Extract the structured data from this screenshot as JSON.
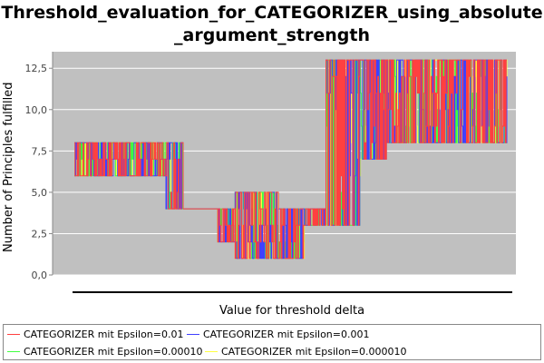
{
  "chart_data": {
    "type": "line",
    "title_line1": "Threshold_evaluation_for_CATEGORIZER_using_absolute",
    "title_line2": "_argument_strength",
    "xlabel": "Value for threshold delta",
    "ylabel": "Number of Principles fulfilled",
    "ylim": [
      0,
      13.5
    ],
    "yticks": [
      "0,0",
      "2,5",
      "5,0",
      "7,5",
      "10,0",
      "12,5"
    ],
    "ytick_values": [
      0,
      2.5,
      5,
      7.5,
      10,
      12.5
    ],
    "grid": true,
    "legend_position": "bottom",
    "background_color": "#c0c0c0",
    "gridline_color": "#ffffff",
    "x_range": [
      0,
      1
    ],
    "segments": [
      {
        "x_start": 0.0,
        "x_end": 0.13,
        "low": 6,
        "high": 8
      },
      {
        "x_start": 0.13,
        "x_end": 0.17,
        "low": 6,
        "high": 8
      },
      {
        "x_start": 0.17,
        "x_end": 0.21,
        "low": 6,
        "high": 8
      },
      {
        "x_start": 0.21,
        "x_end": 0.25,
        "low": 4,
        "high": 8
      },
      {
        "x_start": 0.25,
        "x_end": 0.33,
        "low": 4,
        "high": 4
      },
      {
        "x_start": 0.33,
        "x_end": 0.37,
        "low": 2,
        "high": 4
      },
      {
        "x_start": 0.37,
        "x_end": 0.47,
        "low": 1,
        "high": 5
      },
      {
        "x_start": 0.47,
        "x_end": 0.53,
        "low": 1,
        "high": 4
      },
      {
        "x_start": 0.53,
        "x_end": 0.58,
        "low": 3,
        "high": 4
      },
      {
        "x_start": 0.58,
        "x_end": 0.66,
        "low": 3,
        "high": 13
      },
      {
        "x_start": 0.66,
        "x_end": 0.72,
        "low": 7,
        "high": 13
      },
      {
        "x_start": 0.72,
        "x_end": 0.8,
        "low": 8,
        "high": 13
      },
      {
        "x_start": 0.8,
        "x_end": 1.0,
        "low": 8,
        "high": 13
      }
    ],
    "series": [
      {
        "name": "CATEGORIZER mit Epsilon=0.01",
        "color": "#ff4040"
      },
      {
        "name": "CATEGORIZER mit Epsilon=0.001",
        "color": "#4040ff"
      },
      {
        "name": "CATEGORIZER mit Epsilon=0.00010",
        "color": "#40ff40"
      },
      {
        "name": "CATEGORIZER mit Epsilon=0.000010",
        "color": "#ffff40"
      }
    ]
  }
}
